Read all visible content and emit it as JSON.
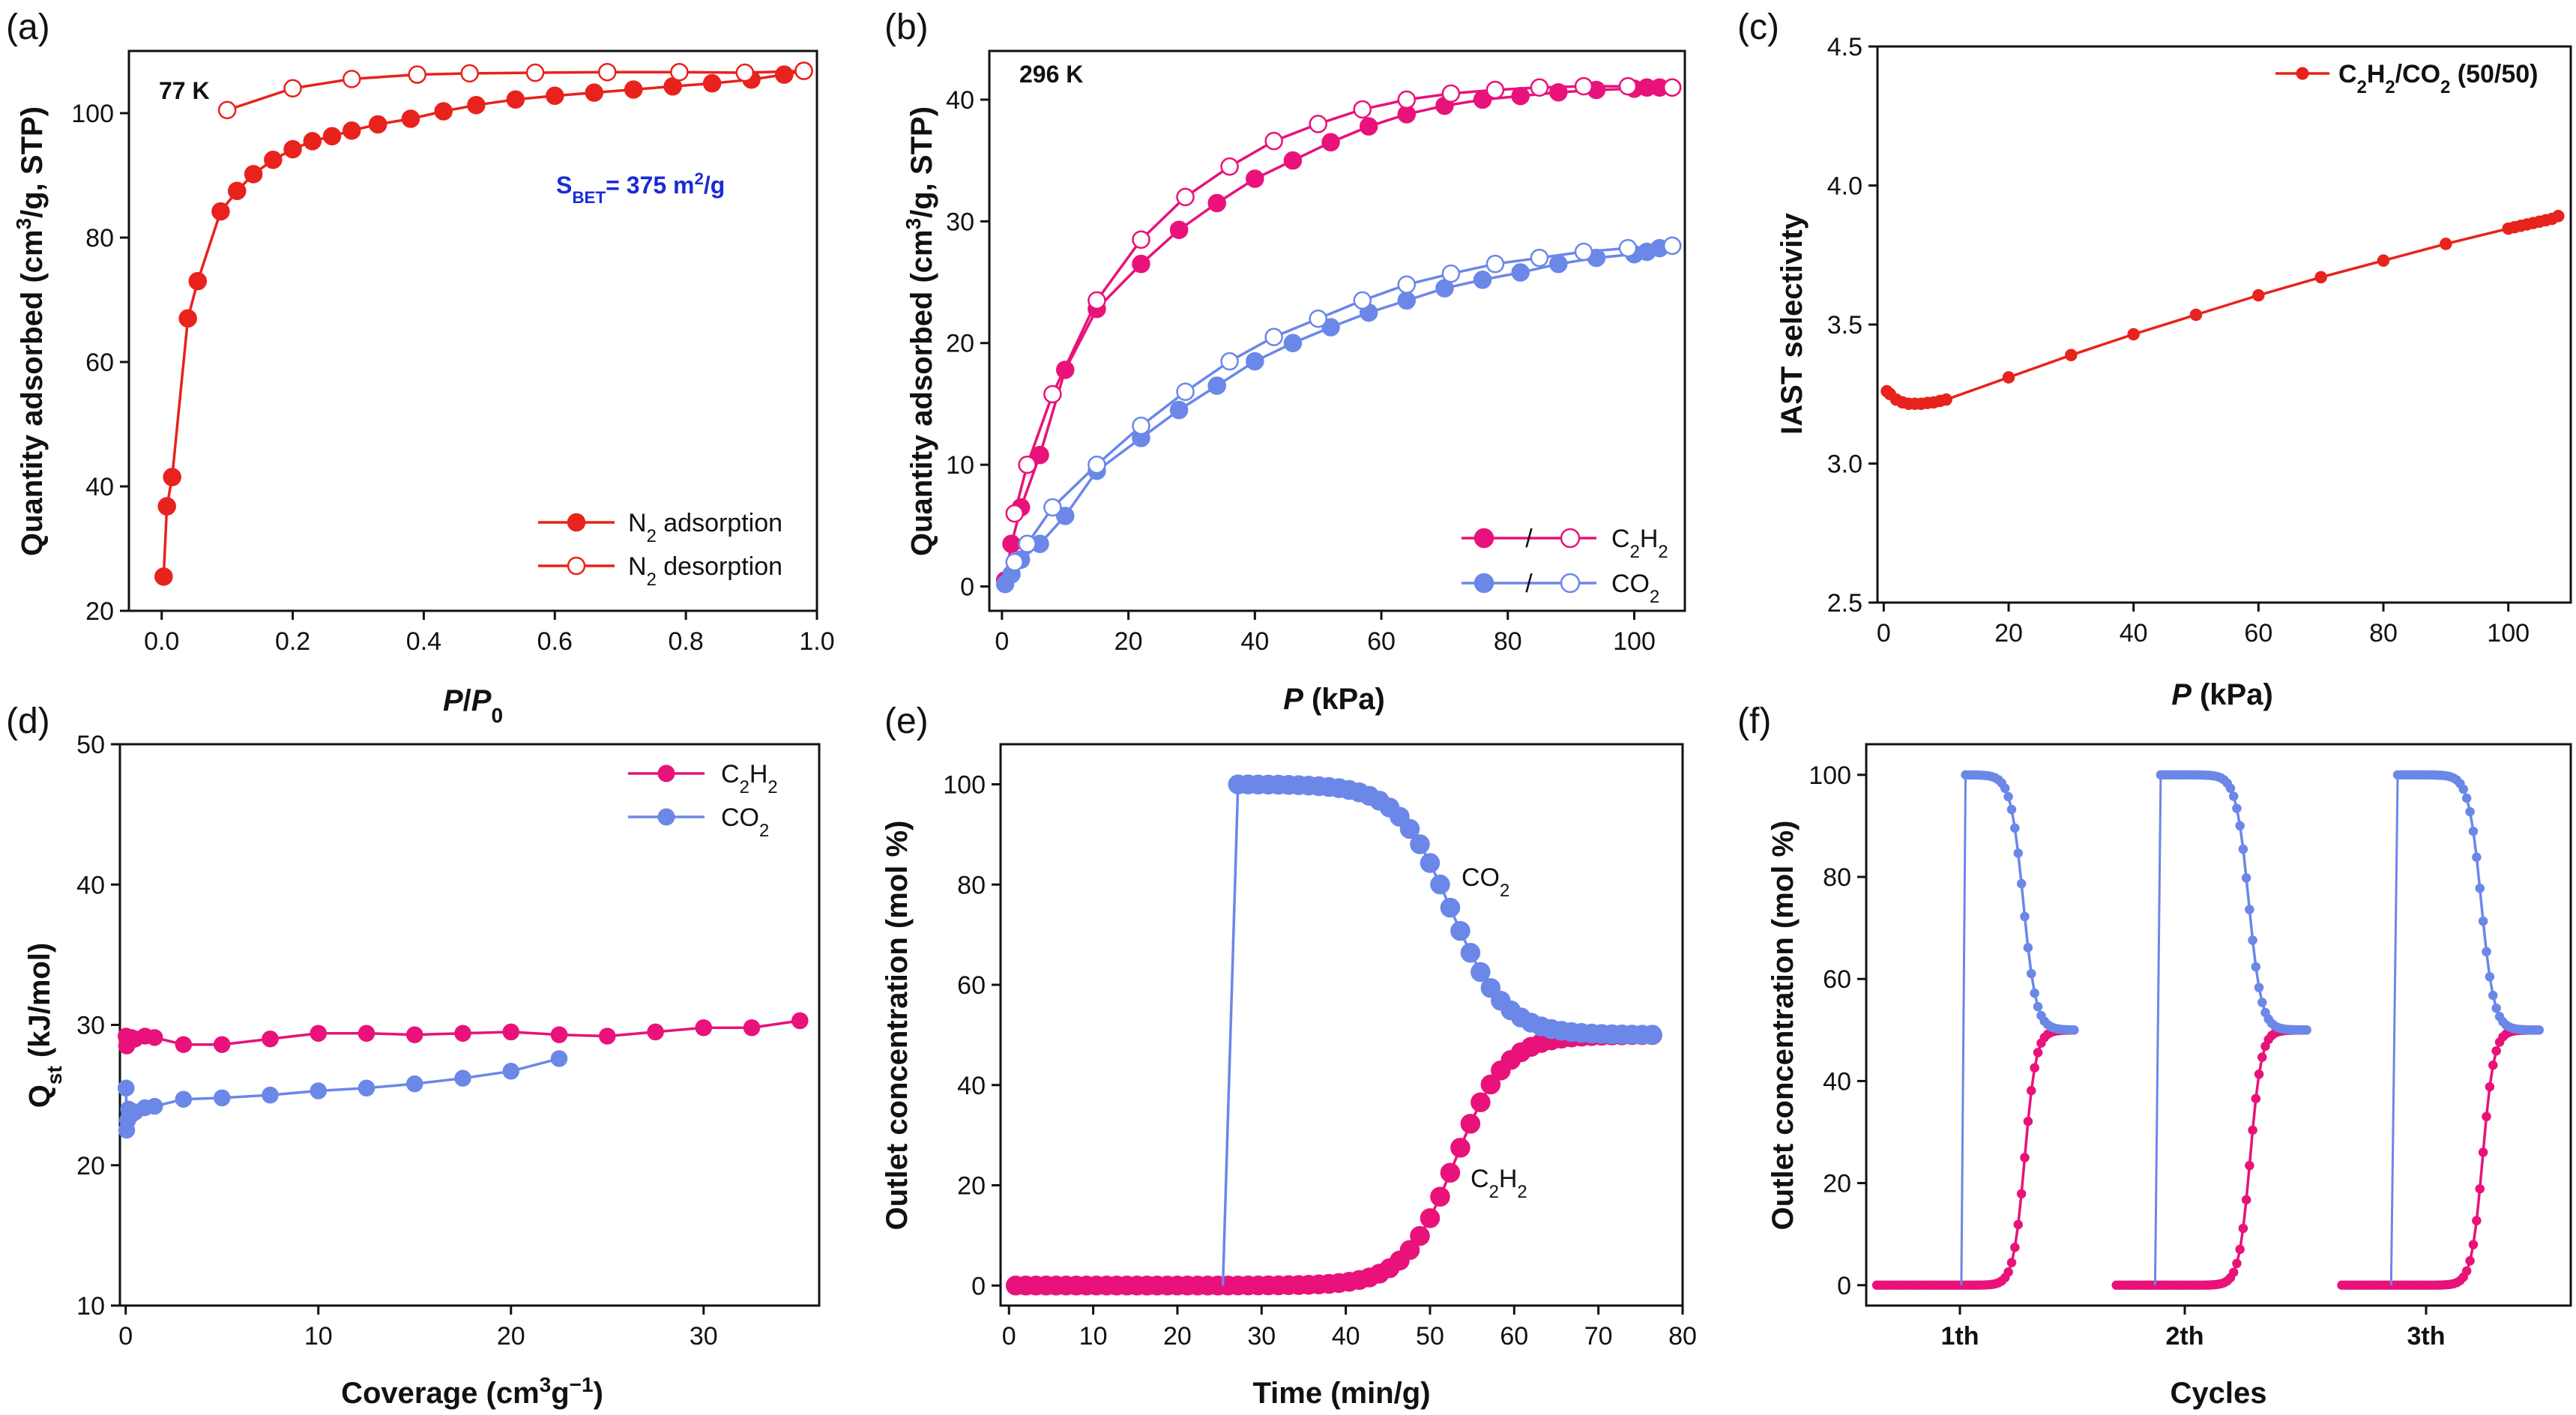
{
  "colors": {
    "red": "#e8221c",
    "pink": "#e8127a",
    "blue": "#6b87e8",
    "blue_text": "#1a2bd6"
  },
  "chart_data": [
    {
      "panel": "(a)",
      "type": "line",
      "xlabel": "P/P0",
      "ylabel": "Quantity adsorbed (cm3/g, STP)",
      "xlim": [
        -0.05,
        1.0
      ],
      "ylim": [
        20,
        110
      ],
      "xticks": [
        "0.0",
        "0.2",
        "0.4",
        "0.6",
        "0.8",
        "1.0"
      ],
      "yticks": [
        "20",
        "40",
        "60",
        "80",
        "100"
      ],
      "annotations": {
        "temp": "77 K",
        "sbet_prefix": "S",
        "sbet_sub": "BET",
        "sbet_value": "= 375 m",
        "sbet_sup": "2",
        "sbet_unit": "/g"
      },
      "legend": [
        "N2 adsorption",
        "N2 desorption"
      ],
      "series": [
        {
          "name": "N2 adsorption",
          "filled": true,
          "x": [
            0.003,
            0.008,
            0.016,
            0.04,
            0.055,
            0.09,
            0.115,
            0.14,
            0.17,
            0.2,
            0.23,
            0.26,
            0.29,
            0.33,
            0.38,
            0.43,
            0.48,
            0.54,
            0.6,
            0.66,
            0.72,
            0.78,
            0.84,
            0.9,
            0.95,
            0.98
          ],
          "y": [
            25.5,
            36.8,
            41.5,
            67,
            73,
            84.2,
            87.5,
            90.2,
            92.5,
            94.2,
            95.5,
            96.3,
            97.2,
            98.2,
            99.1,
            100.3,
            101.3,
            102.2,
            102.8,
            103.3,
            103.8,
            104.3,
            104.8,
            105.4,
            106.2,
            106.8
          ]
        },
        {
          "name": "N2 desorption",
          "filled": false,
          "x": [
            0.98,
            0.89,
            0.79,
            0.68,
            0.57,
            0.47,
            0.39,
            0.29,
            0.2,
            0.1
          ],
          "y": [
            106.8,
            106.5,
            106.6,
            106.6,
            106.5,
            106.4,
            106.2,
            105.5,
            104,
            100.5
          ]
        }
      ]
    },
    {
      "panel": "(b)",
      "type": "line",
      "xlabel": "P (kPa)",
      "ylabel": "Quantity adsorbed (cm3/g, STP)",
      "xlim": [
        -2,
        108
      ],
      "ylim": [
        -2,
        44
      ],
      "xticks": [
        "0",
        "20",
        "40",
        "60",
        "80",
        "100"
      ],
      "yticks": [
        "0",
        "10",
        "20",
        "30",
        "40"
      ],
      "annotations": {
        "temp": "296 K"
      },
      "legend": [
        "C2H2",
        "CO2"
      ],
      "series": [
        {
          "name": "C2H2 adsorption",
          "filled": true,
          "x": [
            0.5,
            1.5,
            3,
            6,
            10,
            15,
            22,
            28,
            34,
            40,
            46,
            52,
            58,
            64,
            70,
            76,
            82,
            88,
            94,
            100,
            102,
            104,
            106
          ],
          "y": [
            0.5,
            3.5,
            6.5,
            10.8,
            17.8,
            22.8,
            26.5,
            29.3,
            31.5,
            33.5,
            35,
            36.5,
            37.8,
            38.8,
            39.5,
            40,
            40.3,
            40.6,
            40.8,
            40.9,
            41,
            41,
            41
          ]
        },
        {
          "name": "C2H2 desorption",
          "filled": false,
          "x": [
            106,
            99,
            92,
            85,
            78,
            71,
            64,
            57,
            50,
            43,
            36,
            29,
            22,
            15,
            8,
            4,
            2
          ],
          "y": [
            41,
            41.1,
            41.1,
            41,
            40.8,
            40.5,
            40,
            39.2,
            38,
            36.6,
            34.5,
            32,
            28.5,
            23.5,
            15.8,
            10,
            6
          ]
        },
        {
          "name": "CO2 adsorption",
          "filled": true,
          "x": [
            0.5,
            1.5,
            3,
            6,
            10,
            15,
            22,
            28,
            34,
            40,
            46,
            52,
            58,
            64,
            70,
            76,
            82,
            88,
            94,
            100,
            102,
            104,
            106
          ],
          "y": [
            0.2,
            1,
            2.2,
            3.5,
            5.8,
            9.5,
            12.2,
            14.5,
            16.5,
            18.5,
            20,
            21.3,
            22.5,
            23.5,
            24.5,
            25.2,
            25.8,
            26.5,
            27,
            27.3,
            27.5,
            27.8,
            28
          ]
        },
        {
          "name": "CO2 desorption",
          "filled": false,
          "x": [
            106,
            99,
            92,
            85,
            78,
            71,
            64,
            57,
            50,
            43,
            36,
            29,
            22,
            15,
            8,
            4,
            2
          ],
          "y": [
            28,
            27.8,
            27.5,
            27,
            26.5,
            25.7,
            24.8,
            23.5,
            22,
            20.5,
            18.5,
            16,
            13.2,
            10,
            6.5,
            3.5,
            2
          ]
        }
      ]
    },
    {
      "panel": "(c)",
      "type": "line",
      "xlabel": "P (kPa)",
      "ylabel": "IAST selectivity",
      "xlim": [
        -1,
        110
      ],
      "ylim": [
        2.5,
        4.5
      ],
      "xticks": [
        "0",
        "20",
        "40",
        "60",
        "80",
        "100"
      ],
      "yticks": [
        "2.5",
        "3.0",
        "3.5",
        "4.0",
        "4.5"
      ],
      "legend": [
        "C2H2/CO2 (50/50)"
      ],
      "series": [
        {
          "name": "C2H2/CO2 (50/50)",
          "filled": true,
          "x": [
            0.5,
            1,
            2,
            3,
            4,
            5,
            6,
            7,
            8,
            9,
            10,
            20,
            30,
            40,
            50,
            60,
            70,
            80,
            90,
            100,
            101,
            102,
            103,
            104,
            105,
            106,
            107,
            108
          ],
          "y": [
            3.26,
            3.25,
            3.23,
            3.22,
            3.215,
            3.215,
            3.215,
            3.218,
            3.22,
            3.225,
            3.23,
            3.31,
            3.39,
            3.465,
            3.535,
            3.605,
            3.67,
            3.73,
            3.79,
            3.845,
            3.85,
            3.855,
            3.86,
            3.865,
            3.87,
            3.875,
            3.88,
            3.89
          ]
        }
      ]
    },
    {
      "panel": "(d)",
      "type": "line",
      "xlabel": "Coverage (cm3g−1)",
      "ylabel": "Qst (kJ/mol)",
      "xlim": [
        -0.3,
        36
      ],
      "ylim": [
        10,
        50
      ],
      "xticks": [
        "0",
        "10",
        "20",
        "30"
      ],
      "yticks": [
        "10",
        "20",
        "30",
        "40",
        "50"
      ],
      "legend": [
        "C2H2",
        "CO2"
      ],
      "series": [
        {
          "name": "C2H2",
          "filled": true,
          "x": [
            0.02,
            0.05,
            0.1,
            0.15,
            0.2,
            0.3,
            0.5,
            1,
            1.5,
            3,
            5,
            7.5,
            10,
            12.5,
            15,
            17.5,
            20,
            22.5,
            25,
            27.5,
            30,
            32.5,
            35
          ],
          "y": [
            29.2,
            28.5,
            28.7,
            29,
            28.8,
            29.1,
            29,
            29.2,
            29.1,
            28.6,
            28.6,
            29,
            29.4,
            29.4,
            29.3,
            29.4,
            29.5,
            29.3,
            29.2,
            29.5,
            29.8,
            29.8,
            30.3
          ]
        },
        {
          "name": "CO2",
          "filled": true,
          "x": [
            0.02,
            0.05,
            0.1,
            0.15,
            0.2,
            0.3,
            0.5,
            1,
            1.5,
            3,
            5,
            7.5,
            10,
            12.5,
            15,
            17.5,
            20,
            22.5
          ],
          "y": [
            25.5,
            22.5,
            23.2,
            24,
            23.5,
            23.6,
            23.8,
            24.1,
            24.2,
            24.7,
            24.8,
            25,
            25.3,
            25.5,
            25.8,
            26.2,
            26.7,
            27.6
          ]
        }
      ]
    },
    {
      "panel": "(e)",
      "type": "line",
      "xlabel": "Time (min/g)",
      "ylabel": "Outlet concentration (mol %)",
      "xlim": [
        -1,
        80
      ],
      "ylim": [
        -4,
        108
      ],
      "xticks": [
        "0",
        "10",
        "20",
        "30",
        "40",
        "50",
        "60",
        "70",
        "80"
      ],
      "yticks": [
        "0",
        "20",
        "40",
        "60",
        "80",
        "100"
      ],
      "labels": {
        "co2": "CO",
        "co2_sub": "2",
        "c2h2_a": "C",
        "c2h2_sub1": "2",
        "c2h2_b": "H",
        "c2h2_sub2": "2"
      },
      "series": [
        {
          "name": "CO2",
          "x_start": 0.8,
          "x_step": 1.2,
          "x_end": 77,
          "breakthrough_x": 25.4,
          "plateau": 100,
          "final": 50,
          "mid_x": 52.5,
          "width": 3.2
        },
        {
          "name": "C2H2",
          "x_start": 0.8,
          "x_step": 1.2,
          "x_end": 77,
          "plateau": 0,
          "final": 50,
          "mid_x": 53,
          "width": 3.0
        }
      ]
    },
    {
      "panel": "(f)",
      "type": "line",
      "xlabel": "Cycles",
      "ylabel": "Outlet concentration (mol %)",
      "ylim": [
        -4,
        106
      ],
      "xticks": [
        "1th",
        "2th",
        "3th"
      ],
      "yticks": [
        "0",
        "20",
        "40",
        "60",
        "80",
        "100"
      ],
      "cycles": [
        {
          "label": "1th",
          "start_frac": 0.015,
          "jump_frac": 0.135,
          "mid_frac": 0.225,
          "end_frac": 0.295
        },
        {
          "label": "2th",
          "start_frac": 0.355,
          "jump_frac": 0.41,
          "mid_frac": 0.545,
          "end_frac": 0.625
        },
        {
          "label": "3th",
          "start_frac": 0.675,
          "jump_frac": 0.745,
          "mid_frac": 0.875,
          "end_frac": 0.955
        }
      ]
    }
  ]
}
